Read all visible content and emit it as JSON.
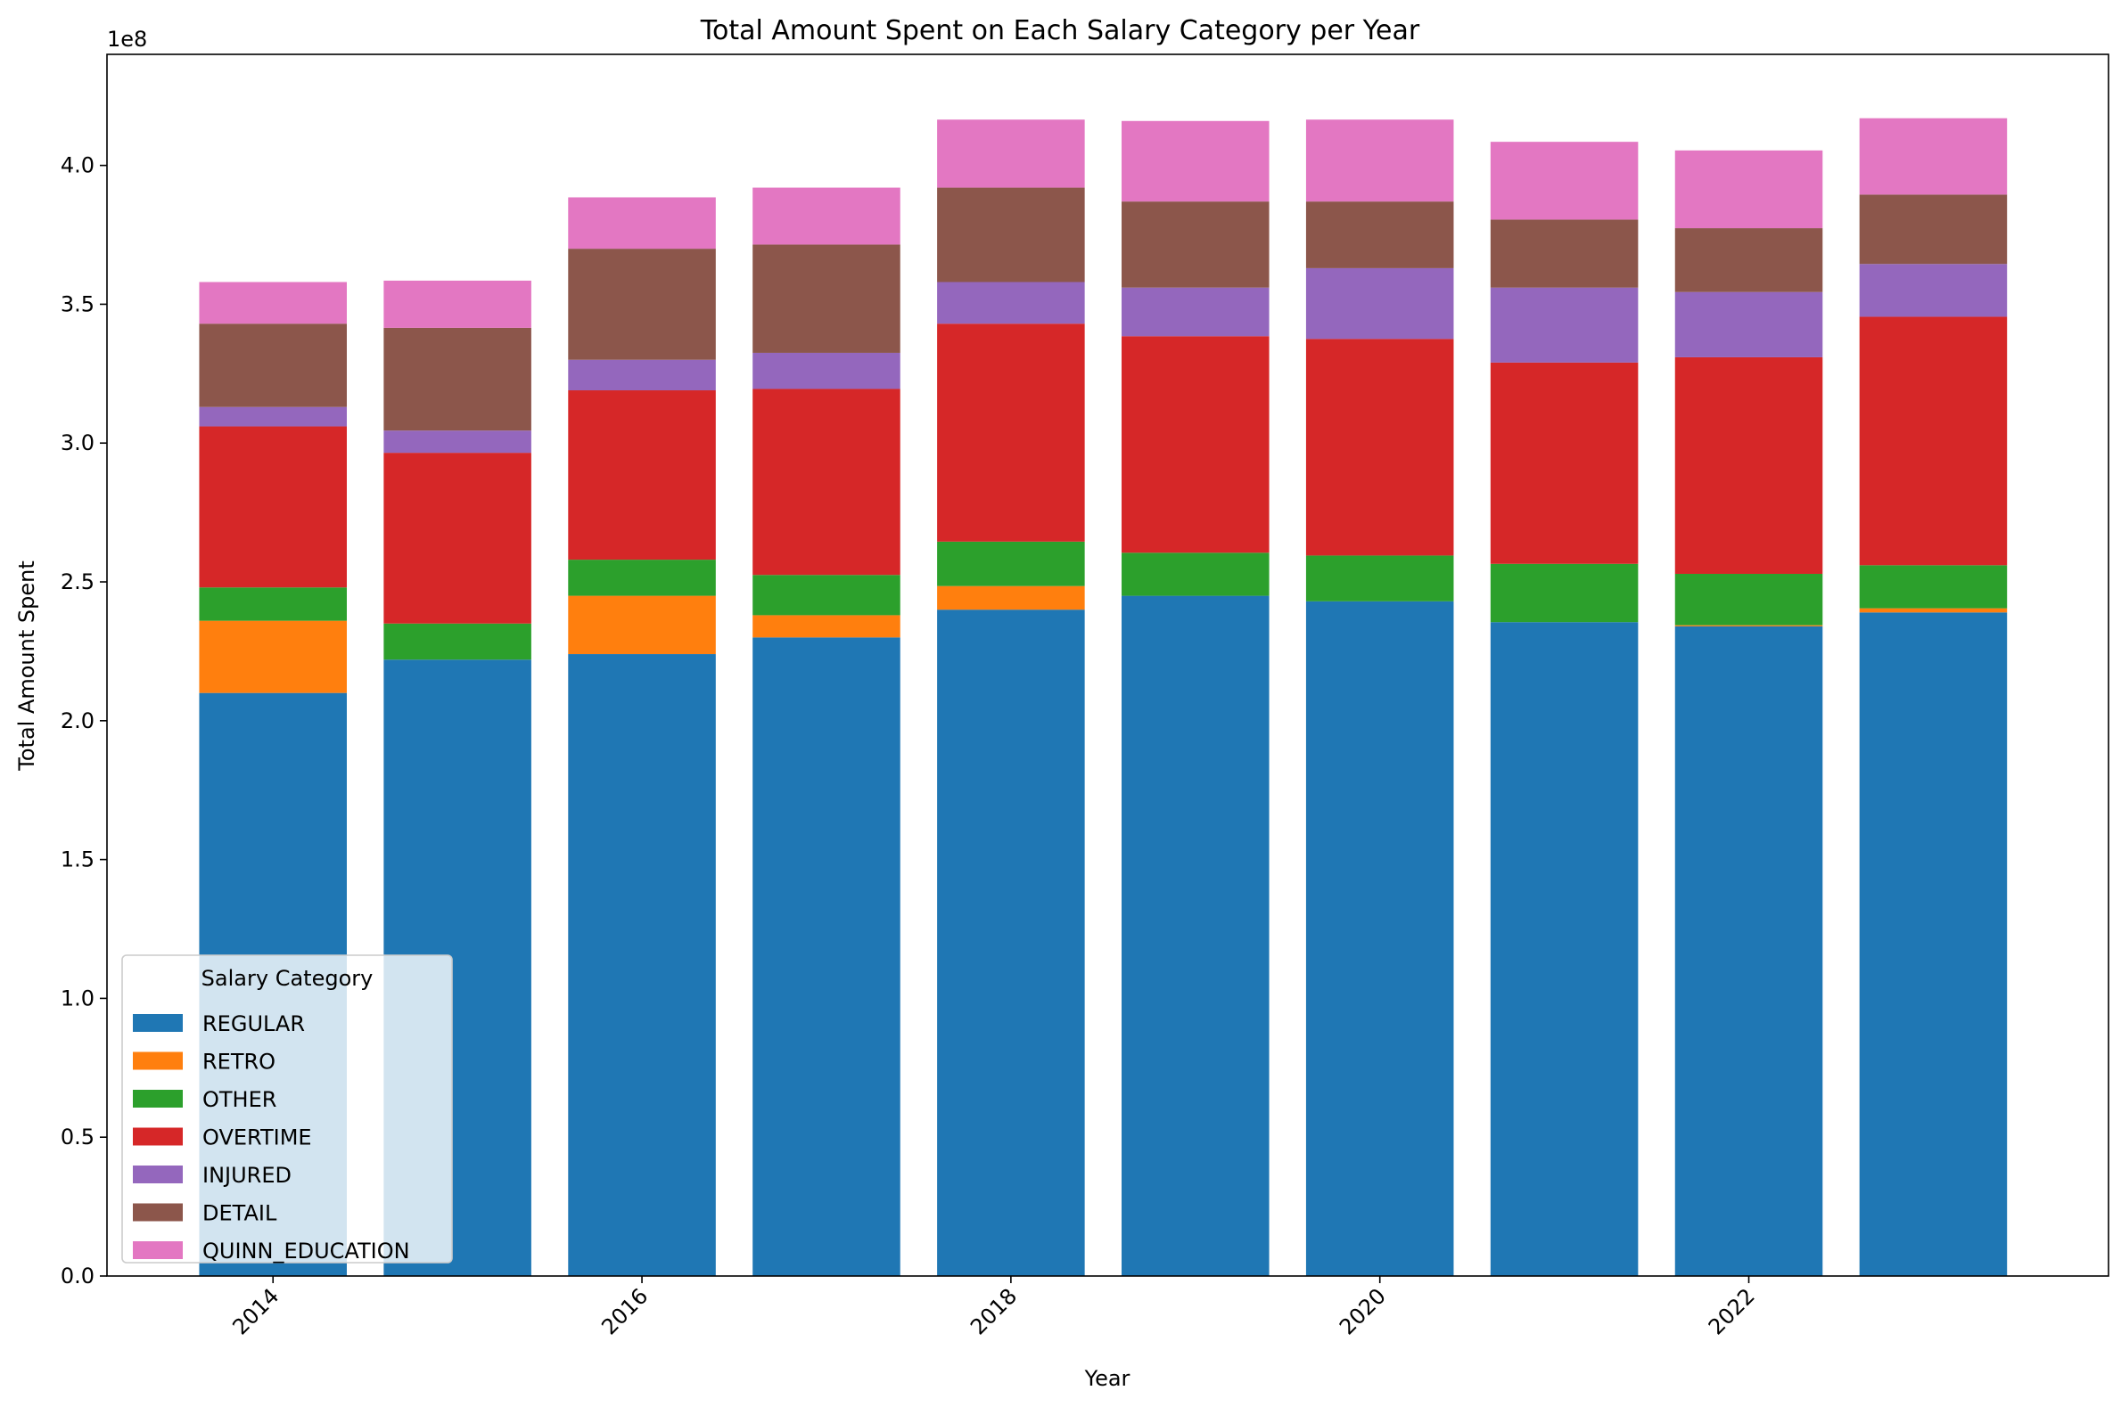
{
  "chart_data": {
    "type": "bar",
    "stacked": true,
    "title": "Total Amount Spent on Each Salary Category per Year",
    "xlabel": "Year",
    "ylabel": "Total Amount Spent",
    "y_multiplier": "1e8",
    "x": [
      2014,
      2015,
      2016,
      2017,
      2018,
      2019,
      2020,
      2021,
      2022,
      2023
    ],
    "xlim": [
      2013.1,
      2023.95
    ],
    "ylim": [
      0,
      4.4
    ],
    "x_ticks": [
      2014,
      2016,
      2018,
      2020,
      2022
    ],
    "y_ticks": [
      "0.0",
      "0.5",
      "1.0",
      "1.5",
      "2.0",
      "2.5",
      "3.0",
      "3.5",
      "4.0"
    ],
    "grid": false,
    "legend": {
      "title": "Salary Category",
      "position": "lower-left"
    },
    "series": [
      {
        "name": "REGULAR",
        "color": "#1f77b4",
        "values": [
          2.1,
          2.22,
          2.24,
          2.3,
          2.4,
          2.45,
          2.43,
          2.355,
          2.34,
          2.39
        ]
      },
      {
        "name": "RETRO",
        "color": "#ff7f0e",
        "values": [
          0.26,
          0.0,
          0.21,
          0.08,
          0.085,
          0.0,
          0.0,
          0.0,
          0.004,
          0.015
        ]
      },
      {
        "name": "OTHER",
        "color": "#2ca02c",
        "values": [
          0.12,
          0.13,
          0.13,
          0.145,
          0.16,
          0.155,
          0.165,
          0.21,
          0.185,
          0.155
        ]
      },
      {
        "name": "OVERTIME",
        "color": "#d62728",
        "values": [
          0.58,
          0.615,
          0.61,
          0.67,
          0.785,
          0.78,
          0.78,
          0.725,
          0.78,
          0.895
        ]
      },
      {
        "name": "INJURED",
        "color": "#9467bd",
        "values": [
          0.07,
          0.08,
          0.11,
          0.13,
          0.15,
          0.175,
          0.255,
          0.27,
          0.235,
          0.19
        ]
      },
      {
        "name": "DETAIL",
        "color": "#8c564b",
        "values": [
          0.3,
          0.37,
          0.4,
          0.39,
          0.34,
          0.31,
          0.24,
          0.245,
          0.23,
          0.25
        ]
      },
      {
        "name": "QUINN_EDUCATION",
        "color": "#e377c2",
        "values": [
          0.15,
          0.17,
          0.185,
          0.205,
          0.245,
          0.29,
          0.295,
          0.28,
          0.28,
          0.275
        ]
      }
    ]
  }
}
